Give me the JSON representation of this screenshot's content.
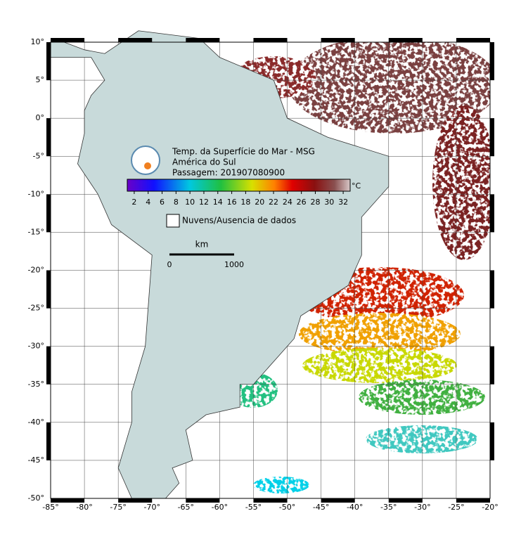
{
  "title": [
    "Temp. da Superfície do Mar - MSG",
    "América do Sul",
    "Passagem: 201907080900"
  ],
  "colorbar": {
    "unit": "°C",
    "lim": [
      1,
      33
    ],
    "ticks": [
      2,
      4,
      6,
      8,
      10,
      12,
      14,
      16,
      18,
      20,
      22,
      24,
      26,
      28,
      30,
      32
    ]
  },
  "legend": "Nuvens/Ausencia de dados",
  "scale": {
    "unit": "km",
    "labels": [
      "0",
      "1000"
    ]
  },
  "lon_lim": [
    -85,
    -20
  ],
  "lat_lim": [
    -50,
    10
  ],
  "lon_ticks": [
    {
      "value": -85,
      "label": "-85°"
    },
    {
      "value": -80,
      "label": "-80°"
    },
    {
      "value": -75,
      "label": "-75°"
    },
    {
      "value": -70,
      "label": "-70°"
    },
    {
      "value": -65,
      "label": "-65°"
    },
    {
      "value": -60,
      "label": "-60°"
    },
    {
      "value": -55,
      "label": "-55°"
    },
    {
      "value": -50,
      "label": "-50°"
    },
    {
      "value": -45,
      "label": "-45°"
    },
    {
      "value": -40,
      "label": "-40°"
    },
    {
      "value": -35,
      "label": "-35°"
    },
    {
      "value": -30,
      "label": "-30°"
    },
    {
      "value": -25,
      "label": "-25°"
    },
    {
      "value": -20,
      "label": "-20°"
    }
  ],
  "lat_ticks": [
    {
      "value": 10,
      "label": "10°"
    },
    {
      "value": 5,
      "label": "5°"
    },
    {
      "value": 0,
      "label": "0°"
    },
    {
      "value": -5,
      "label": "-5°"
    },
    {
      "value": -10,
      "label": "-10°"
    },
    {
      "value": -15,
      "label": "-15°"
    },
    {
      "value": -20,
      "label": "-20°"
    },
    {
      "value": -25,
      "label": "-25°"
    },
    {
      "value": -30,
      "label": "-30°"
    },
    {
      "value": -35,
      "label": "-35°"
    },
    {
      "value": -40,
      "label": "-40°"
    },
    {
      "value": -45,
      "label": "-45°"
    },
    {
      "value": -50,
      "label": "-50°"
    }
  ]
}
